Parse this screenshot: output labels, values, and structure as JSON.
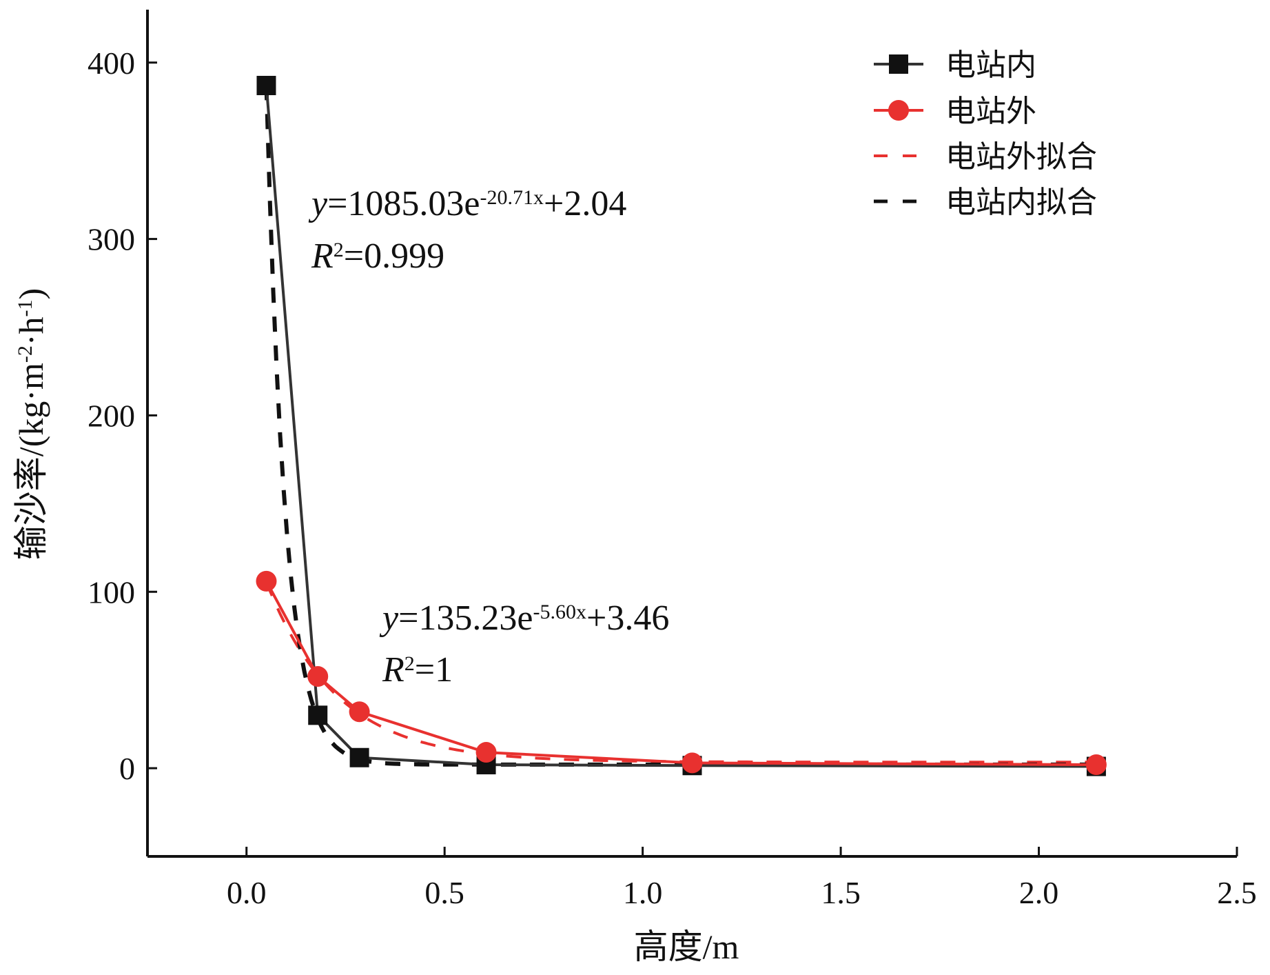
{
  "chart_data": {
    "type": "line",
    "title": "",
    "xlabel": "高度/m",
    "ylabel": "输沙率/(kg·m-2·h-1)",
    "ylabel_parts": {
      "main": "输沙率/(kg·m",
      "sup1": "-2",
      "mid": "·h",
      "sup2": "-1",
      "tail": ")"
    },
    "xlim": [
      -0.25,
      2.5
    ],
    "ylim": [
      -50,
      430
    ],
    "xticks": [
      0.0,
      0.5,
      1.0,
      1.5,
      2.0,
      2.5
    ],
    "xtick_labels": [
      "0.0",
      "0.5",
      "1.0",
      "1.5",
      "2.0",
      "2.5"
    ],
    "yticks": [
      0,
      100,
      200,
      300,
      400
    ],
    "ytick_labels": [
      "0",
      "100",
      "200",
      "300",
      "400"
    ],
    "grid": false,
    "legend_position": "top-right",
    "series": [
      {
        "name": "电站内",
        "kind": "data",
        "marker": "square",
        "color": "#111111",
        "line_color": "#333333",
        "x": [
          0.05,
          0.18,
          0.285,
          0.605,
          1.125,
          2.145
        ],
        "y": [
          387,
          30,
          6,
          2,
          1.5,
          1
        ]
      },
      {
        "name": "电站外",
        "kind": "data",
        "marker": "circle",
        "color": "#e8312f",
        "line_color": "#e8312f",
        "x": [
          0.05,
          0.18,
          0.285,
          0.605,
          1.125,
          2.145
        ],
        "y": [
          106,
          52,
          32,
          9,
          3,
          2
        ]
      },
      {
        "name": "电站外拟合",
        "kind": "fit",
        "color": "#e8312f",
        "a": 135.23,
        "b": 5.6,
        "c": 3.46,
        "x_range": [
          0.05,
          2.145
        ]
      },
      {
        "name": "电站内拟合",
        "kind": "fit",
        "color": "#111111",
        "a": 1085.03,
        "b": 20.71,
        "c": 2.04,
        "x_range": [
          0.05,
          2.145
        ]
      }
    ],
    "annotations": [
      {
        "id": "fit-inner",
        "eq_prefix": "y",
        "eq_main": "=1085.03e",
        "eq_exp": "-20.71x",
        "eq_tail": "+2.04",
        "r2_prefix": "R",
        "r2_sup": "2",
        "r2_value": "=0.999"
      },
      {
        "id": "fit-outer",
        "eq_prefix": "y",
        "eq_main": "=135.23e",
        "eq_exp": "-5.60x",
        "eq_tail": "+3.46",
        "r2_prefix": "R",
        "r2_sup": "2",
        "r2_value": "=1"
      }
    ]
  }
}
